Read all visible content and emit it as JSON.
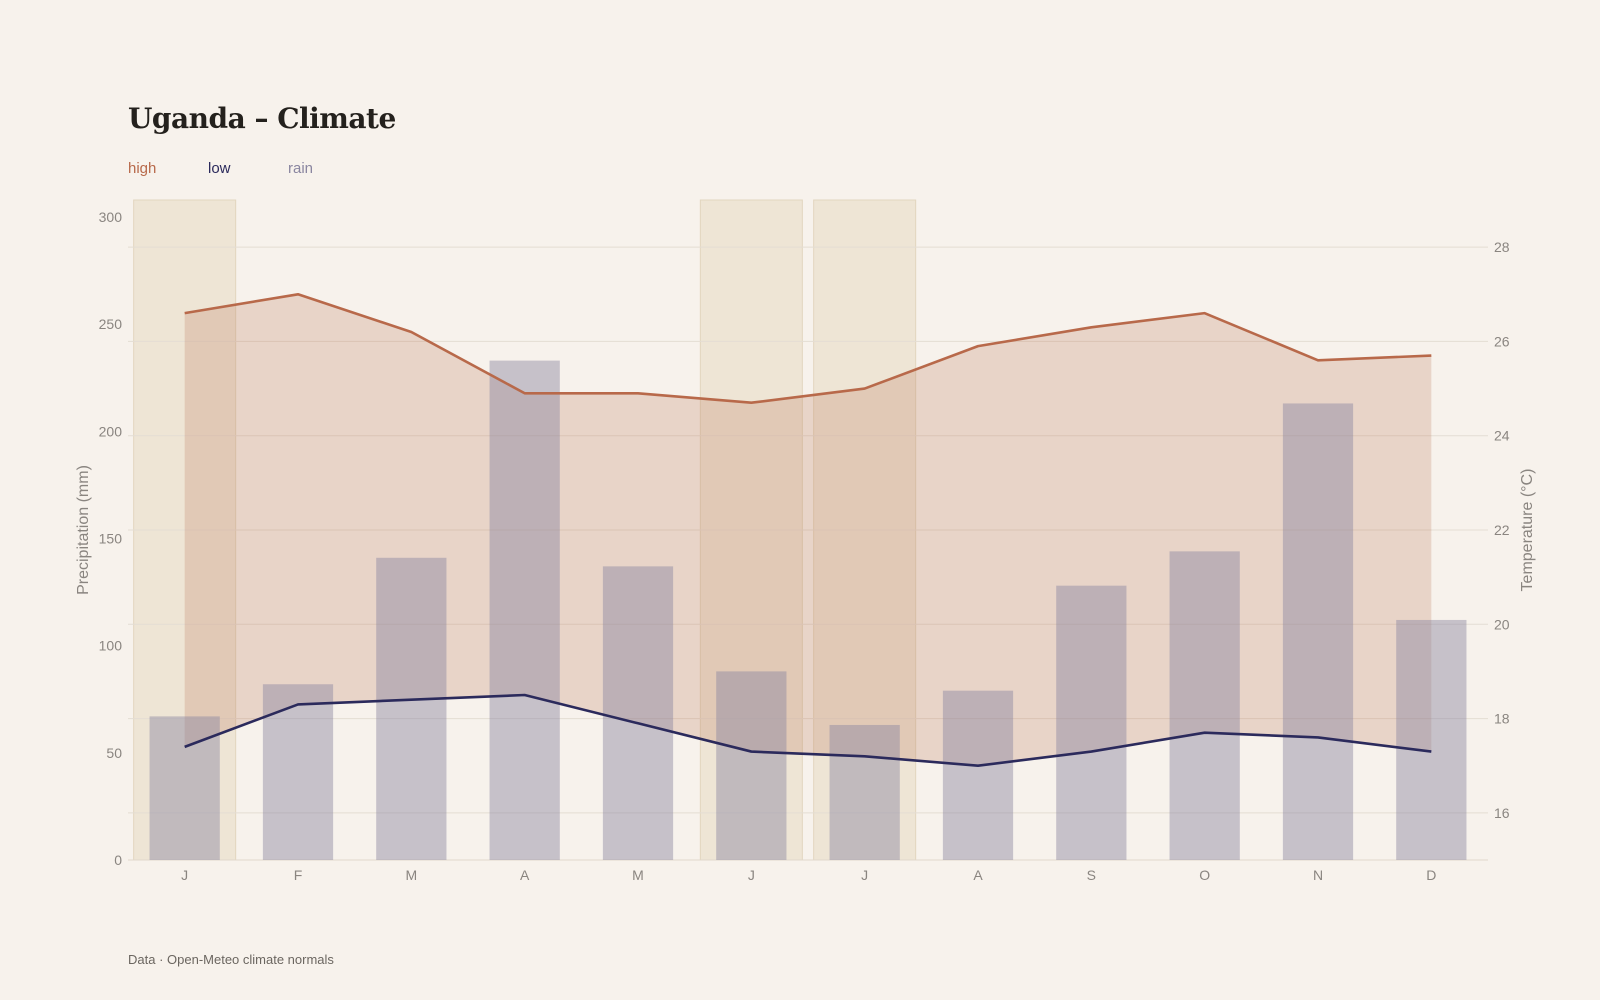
{
  "title": "Uganda – Climate",
  "legend": {
    "high": "high",
    "low": "low",
    "rain": "rain"
  },
  "source": "Data · Open-Meteo climate normals",
  "colors": {
    "high": "#b8694a",
    "low": "#2b2a5c",
    "rain": "#8a86a0",
    "highlight": "#e8dcc6",
    "background": "#f7f2ec"
  },
  "chart_data": {
    "type": "bar",
    "categories": [
      "J",
      "F",
      "M",
      "A",
      "M",
      "J",
      "J",
      "A",
      "S",
      "O",
      "N",
      "D"
    ],
    "highlighted_months": [
      0,
      5,
      6
    ],
    "series": [
      {
        "name": "rain",
        "type": "bar",
        "axis": "left",
        "values": [
          67,
          82,
          141,
          233,
          137,
          88,
          63,
          79,
          128,
          144,
          213,
          112
        ]
      },
      {
        "name": "high",
        "type": "line",
        "axis": "right",
        "values": [
          26.6,
          27.0,
          26.2,
          24.9,
          24.9,
          24.7,
          25.0,
          25.9,
          26.3,
          26.6,
          25.6,
          25.7
        ]
      },
      {
        "name": "low",
        "type": "line",
        "axis": "right",
        "values": [
          17.4,
          18.3,
          18.4,
          18.5,
          17.9,
          17.3,
          17.2,
          17.0,
          17.3,
          17.7,
          17.6,
          17.3
        ]
      }
    ],
    "yleft": {
      "label": "Precipitation (mm)",
      "ticks": [
        0,
        50,
        100,
        150,
        200,
        250,
        300
      ],
      "range": [
        0,
        300
      ]
    },
    "yright": {
      "label": "Temperature (°C)",
      "ticks": [
        16,
        18,
        20,
        22,
        24,
        26,
        28
      ],
      "range": [
        15,
        29
      ]
    },
    "grid": true
  }
}
